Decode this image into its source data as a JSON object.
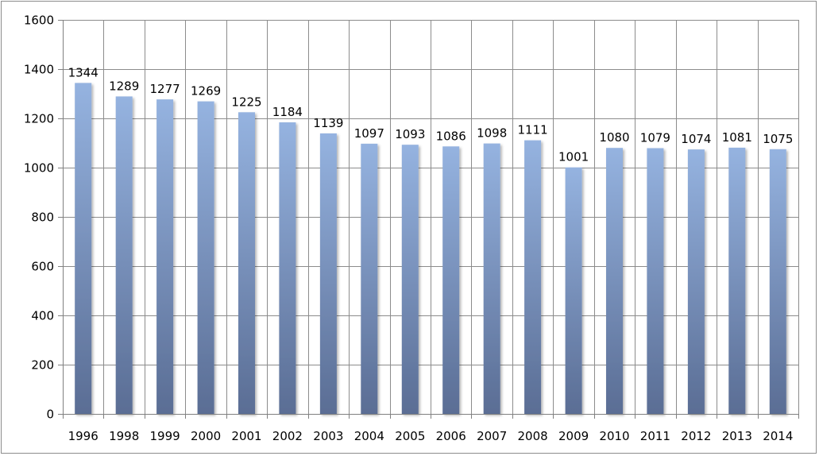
{
  "chart_data": {
    "type": "bar",
    "title": "",
    "xlabel": "",
    "ylabel": "",
    "categories": [
      "1996",
      "1998",
      "1999",
      "2000",
      "2001",
      "2002",
      "2003",
      "2004",
      "2005",
      "2006",
      "2007",
      "2008",
      "2009",
      "2010",
      "2011",
      "2012",
      "2013",
      "2014"
    ],
    "values": [
      1344,
      1289,
      1277,
      1269,
      1225,
      1184,
      1139,
      1097,
      1093,
      1086,
      1098,
      1111,
      1001,
      1080,
      1079,
      1074,
      1081,
      1075
    ],
    "data_labels": [
      "1344",
      "1289",
      "1277",
      "1269",
      "1225",
      "1184",
      "1139",
      "1097",
      "1093",
      "1086",
      "1098",
      "1111",
      "1001",
      "1080",
      "1079",
      "1074",
      "1081",
      "1075"
    ],
    "ylim": [
      0,
      1600
    ],
    "yticks": [
      0,
      200,
      400,
      600,
      800,
      1000,
      1200,
      1400,
      1600
    ],
    "ytick_labels": [
      "0",
      "200",
      "400",
      "600",
      "800",
      "1000",
      "1200",
      "1400",
      "1600"
    ],
    "grid": true,
    "legend": "none",
    "colors": {
      "bar_top": "#95b3e0",
      "bar_bottom": "#5a6d94",
      "grid": "#8c8c8c",
      "axis": "#808080"
    }
  }
}
